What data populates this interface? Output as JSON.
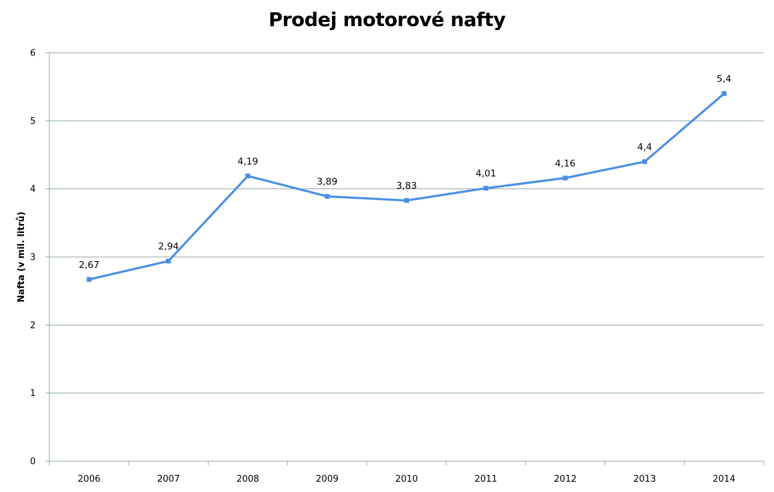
{
  "chart_data": {
    "type": "line",
    "title": "Prodej motorové nafty",
    "xlabel": "",
    "ylabel": "Nafta (v mil. litrů)",
    "categories": [
      "2006",
      "2007",
      "2008",
      "2009",
      "2010",
      "2011",
      "2012",
      "2013",
      "2014"
    ],
    "series": [
      {
        "values": [
          2.67,
          2.94,
          4.19,
          3.89,
          3.83,
          4.01,
          4.16,
          4.4,
          5.4
        ],
        "data_labels": [
          "2,67",
          "2,94",
          "4,19",
          "3,89",
          "3,83",
          "4,01",
          "4,16",
          "4,4",
          "5,4"
        ],
        "color": "#4a90e2"
      }
    ],
    "ylim": [
      0,
      6
    ],
    "yticks": [
      "0",
      "1",
      "2",
      "3",
      "4",
      "5",
      "6"
    ],
    "grid": true,
    "legend": "none",
    "gridline_color": "#8fa5a5"
  }
}
